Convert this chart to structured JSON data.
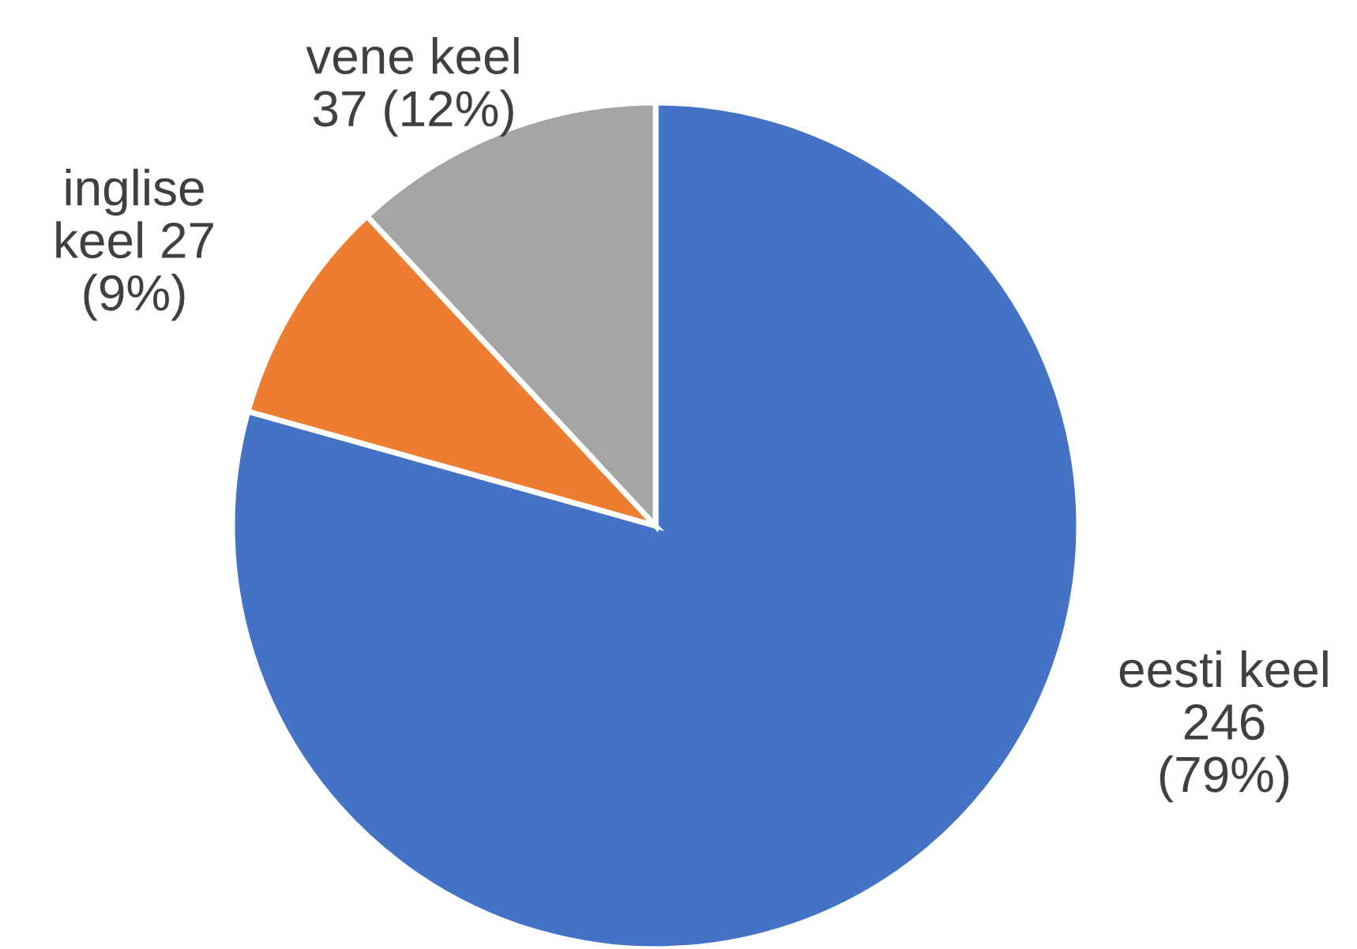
{
  "chart_data": {
    "type": "pie",
    "categories": [
      "eesti keel",
      "inglise keel",
      "vene keel"
    ],
    "values": [
      246,
      27,
      37
    ],
    "colors": [
      "#4472c4",
      "#ed7d31",
      "#a5a5a5"
    ],
    "value_labels": [
      "246 (79%)",
      "27 (9%)",
      "37 (12%)"
    ],
    "legend": false
  }
}
